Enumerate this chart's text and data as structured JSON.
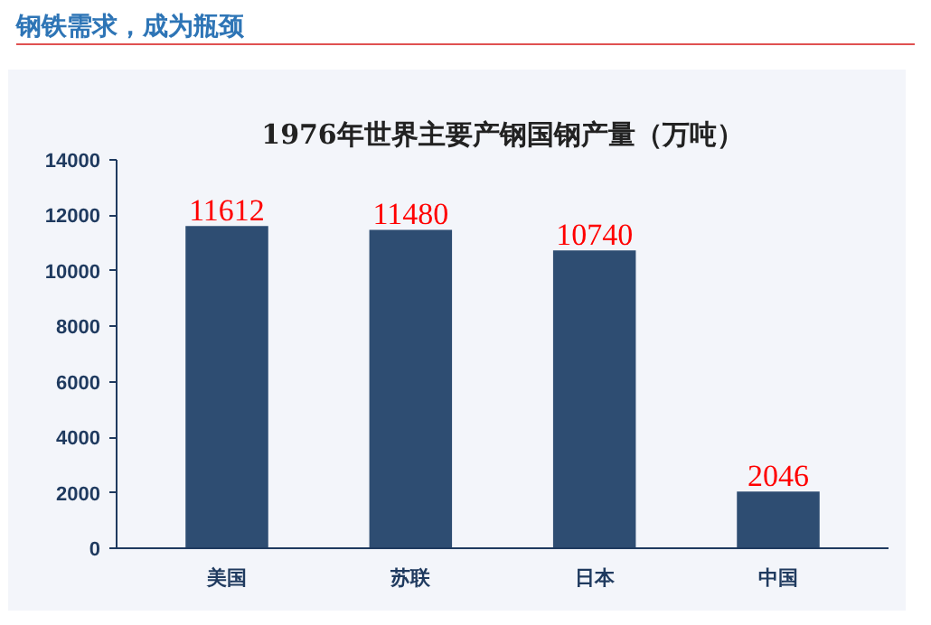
{
  "chart_data": {
    "type": "bar",
    "title": "1976年世界主要产钢国钢产量（万吨）",
    "annotations": [
      "钢铁需求，成为瓶颈"
    ],
    "categories": [
      "美国",
      "苏联",
      "日本",
      "中国"
    ],
    "values": [
      11612,
      11480,
      10740,
      2046
    ],
    "color": "#2e4d72",
    "data_labels": true,
    "ylim": [
      0,
      14000
    ],
    "yticks": [
      0,
      2000,
      4000,
      6000,
      8000,
      10000,
      12000,
      14000
    ]
  }
}
